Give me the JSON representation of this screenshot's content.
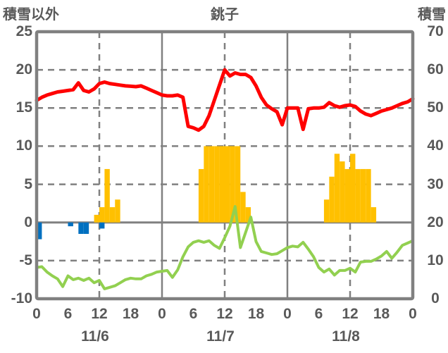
{
  "header": {
    "left_axis_title": "積雪以外",
    "station_title": "銚子",
    "right_axis_title": "積雪"
  },
  "colors": {
    "grid": "#808080",
    "text": "#595959",
    "background": "#FFFFFF",
    "red_line": "#FF0000",
    "green_line": "#92D050",
    "orange_bars": "#FFC000",
    "blue_bars": "#0070C0"
  },
  "chart_data": {
    "type": "line+bar",
    "title": "銚子",
    "left_axis": {
      "title": "積雪以外",
      "min": -10,
      "max": 25,
      "step": 5,
      "ticks": [
        25,
        20,
        15,
        10,
        5,
        0,
        -5,
        -10
      ]
    },
    "right_axis": {
      "title": "積雪",
      "min": 0,
      "max": 70,
      "step": 10,
      "ticks": [
        70,
        60,
        50,
        40,
        30,
        20,
        10,
        0
      ]
    },
    "x_axis": {
      "total_hours": 72,
      "hour_tick_step": 6,
      "tick_labels": [
        "0",
        "6",
        "12",
        "18",
        "0",
        "6",
        "12",
        "18",
        "0",
        "6",
        "12",
        "18",
        "0"
      ],
      "date_labels": [
        "11/6",
        "11/7",
        "11/8"
      ],
      "noon_dashed_hours": [
        12,
        36,
        60
      ],
      "day_boundary_hours": [
        24,
        48
      ]
    },
    "grid": {
      "horizontal_dashed_values": [
        20,
        15,
        10,
        5,
        -5
      ],
      "zero_line_value": 0
    },
    "series": [
      {
        "name": "red-line",
        "type": "line",
        "color": "#FF0000",
        "width": 5,
        "values": [
          16.0,
          16.4,
          16.7,
          16.9,
          17.1,
          17.2,
          17.3,
          17.4,
          18.3,
          17.3,
          17.1,
          17.5,
          18.2,
          18.4,
          18.2,
          18.1,
          18.0,
          17.9,
          17.85,
          17.8,
          17.9,
          17.6,
          17.3,
          17.0,
          16.7,
          16.6,
          16.6,
          16.7,
          16.4,
          12.6,
          12.4,
          12.1,
          12.6,
          14.0,
          16.0,
          18.0,
          20.0,
          19.2,
          19.6,
          19.4,
          19.4,
          19.0,
          17.9,
          16.4,
          15.4,
          14.9,
          14.5,
          12.8,
          15.0,
          15.0,
          15.0,
          12.2,
          14.9,
          15.0,
          15.0,
          15.1,
          15.7,
          15.3,
          15.1,
          15.3,
          15.4,
          15.2,
          14.6,
          14.2,
          14.0,
          14.3,
          14.6,
          14.8,
          15.0,
          15.3,
          15.6,
          15.8,
          16.2
        ]
      },
      {
        "name": "green-line",
        "type": "line",
        "color": "#92D050",
        "width": 4,
        "values": [
          -5.9,
          -5.8,
          -6.5,
          -7.0,
          -7.4,
          -8.4,
          -7.0,
          -7.5,
          -7.3,
          -7.6,
          -7.3,
          -7.9,
          -7.6,
          -8.7,
          -8.5,
          -8.3,
          -7.9,
          -7.5,
          -7.3,
          -7.4,
          -7.4,
          -7.0,
          -6.8,
          -6.5,
          -6.4,
          -6.3,
          -7.2,
          -6.2,
          -4.5,
          -3.2,
          -2.6,
          -2.4,
          -2.6,
          -2.4,
          -3.0,
          -3.4,
          -2.0,
          -0.5,
          2.1,
          -3.3,
          -1.3,
          0.7,
          -2.5,
          -3.8,
          -4.0,
          -4.2,
          -4.1,
          -3.7,
          -3.3,
          -3.1,
          -3.2,
          -2.6,
          -3.5,
          -4.5,
          -5.9,
          -6.5,
          -6.1,
          -6.9,
          -6.3,
          -6.3,
          -6.0,
          -6.5,
          -5.2,
          -5.1,
          -5.1,
          -4.8,
          -4.4,
          -3.8,
          -4.7,
          -3.9,
          -3.0,
          -2.7,
          -2.4
        ]
      },
      {
        "name": "orange-bars",
        "type": "bar",
        "color": "#FFC000",
        "bars": [
          {
            "hour": 11,
            "value": 1
          },
          {
            "hour": 12,
            "value": 2
          },
          {
            "hour": 13,
            "value": 7
          },
          {
            "hour": 14,
            "value": 2
          },
          {
            "hour": 15,
            "value": 3
          },
          {
            "hour": 31,
            "value": 7
          },
          {
            "hour": 32,
            "value": 10
          },
          {
            "hour": 33,
            "value": 10
          },
          {
            "hour": 34,
            "value": 10
          },
          {
            "hour": 35,
            "value": 10
          },
          {
            "hour": 36,
            "value": 10
          },
          {
            "hour": 37,
            "value": 10
          },
          {
            "hour": 38,
            "value": 10
          },
          {
            "hour": 39,
            "value": 4
          },
          {
            "hour": 40,
            "value": 2
          },
          {
            "hour": 55,
            "value": 3
          },
          {
            "hour": 56,
            "value": 6
          },
          {
            "hour": 57,
            "value": 9
          },
          {
            "hour": 58,
            "value": 8
          },
          {
            "hour": 59,
            "value": 7
          },
          {
            "hour": 60,
            "value": 9
          },
          {
            "hour": 61,
            "value": 7
          },
          {
            "hour": 62,
            "value": 7
          },
          {
            "hour": 63,
            "value": 7
          },
          {
            "hour": 64,
            "value": 2
          }
        ]
      },
      {
        "name": "blue-bars",
        "type": "bar",
        "color": "#0070C0",
        "bars": [
          {
            "hour": 0,
            "value": -2.2
          },
          {
            "hour": 6,
            "value": -0.5
          },
          {
            "hour": 8,
            "value": -1.5
          },
          {
            "hour": 9,
            "value": -1.5
          },
          {
            "hour": 12,
            "value": -0.8
          }
        ]
      }
    ]
  }
}
